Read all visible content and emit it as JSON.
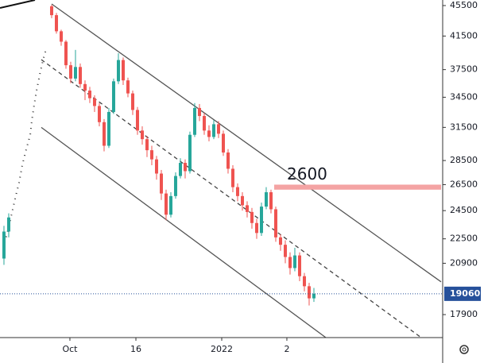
{
  "chart_data": {
    "type": "candlestick",
    "log_scale": true,
    "up_color": "#26a69a",
    "down_color": "#ef5350",
    "x": [
      -10,
      -9,
      0,
      1,
      2,
      3,
      4,
      5,
      6,
      7,
      8,
      9,
      10,
      11,
      12,
      13,
      14,
      15,
      16,
      17,
      18,
      19,
      20,
      21,
      22,
      23,
      24,
      25,
      26,
      27,
      28,
      29,
      30,
      31,
      32,
      33,
      34,
      35,
      36,
      37,
      38,
      39,
      40,
      41,
      42,
      43,
      44,
      45,
      46,
      47,
      48,
      49,
      50,
      51,
      52,
      53,
      54,
      55
    ],
    "open": [
      21200,
      23000,
      45400,
      44200,
      42100,
      40800,
      38000,
      36500,
      37800,
      35900,
      35200,
      34400,
      33600,
      32000,
      29800,
      33000,
      36200,
      38600,
      36300,
      34900,
      33200,
      31200,
      30400,
      29400,
      28600,
      27400,
      25800,
      24200,
      25600,
      27200,
      28300,
      27600,
      30800,
      33400,
      32600,
      31200,
      30600,
      31800,
      30900,
      29200,
      27800,
      26300,
      25600,
      24900,
      24400,
      23600,
      22900,
      24800,
      25900,
      24600,
      22600,
      22100,
      21300,
      20600,
      21400,
      20100,
      19500,
      18800
    ],
    "high": [
      23400,
      24300,
      45600,
      44500,
      42300,
      41000,
      38400,
      39800,
      38200,
      36300,
      35600,
      34700,
      33900,
      32300,
      33400,
      36500,
      39400,
      38900,
      36600,
      35200,
      33500,
      31600,
      30700,
      29800,
      28900,
      27700,
      26100,
      25900,
      27500,
      28700,
      28600,
      31100,
      33900,
      33800,
      32900,
      31700,
      32200,
      32100,
      31200,
      29500,
      28100,
      26600,
      25900,
      25200,
      24700,
      23900,
      25100,
      26300,
      26100,
      24800,
      22800,
      22400,
      21600,
      21900,
      21600,
      20300,
      19700,
      19400
    ],
    "low": [
      20800,
      22600,
      43800,
      41800,
      40300,
      37600,
      36000,
      36200,
      35500,
      34200,
      33900,
      33000,
      31600,
      29300,
      29600,
      32800,
      35900,
      35800,
      34500,
      32700,
      30800,
      29900,
      28800,
      28100,
      26900,
      25300,
      23800,
      24000,
      25400,
      27000,
      27000,
      27400,
      30600,
      32100,
      30800,
      30200,
      30400,
      30500,
      28900,
      27400,
      25900,
      25200,
      24500,
      24000,
      23200,
      22500,
      22700,
      24600,
      24300,
      22300,
      21700,
      20900,
      20200,
      20400,
      19800,
      19200,
      18400,
      18600
    ],
    "close": [
      23000,
      24000,
      44200,
      42100,
      40800,
      38000,
      36500,
      37800,
      35900,
      35200,
      34400,
      33600,
      32000,
      29800,
      33000,
      36200,
      38600,
      36300,
      34900,
      33200,
      31200,
      30400,
      29400,
      28600,
      27400,
      25800,
      24200,
      25600,
      27200,
      28300,
      27600,
      30800,
      33400,
      32600,
      31200,
      30600,
      31800,
      30900,
      29200,
      27800,
      26300,
      25600,
      24900,
      24400,
      23600,
      22900,
      24800,
      25900,
      24600,
      22600,
      22100,
      21300,
      20600,
      21400,
      20100,
      19500,
      18800,
      19060
    ],
    "xlim": [
      -10.83,
      81.67
    ],
    "xticks": [
      {
        "value": 3.83,
        "label": "Oct"
      },
      {
        "value": 17.67,
        "label": "16"
      },
      {
        "value": 35.67,
        "label": "2022"
      },
      {
        "value": 49.33,
        "label": "2"
      }
    ],
    "ylim": [
      16700,
      46270
    ],
    "yticks": [
      45500,
      41500,
      37500,
      34500,
      31500,
      28500,
      26500,
      24500,
      22500,
      20900,
      17900
    ],
    "trend_lines": [
      {
        "x": [
          0,
          81.67
        ],
        "y": [
          45720,
          19760
        ],
        "style": "solid",
        "color": "#555555"
      },
      {
        "x": [
          -2.17,
          57.5
        ],
        "y": [
          31500,
          16700
        ],
        "style": "solid",
        "color": "#555555"
      },
      {
        "x": [
          -2.17,
          77.5
        ],
        "y": [
          38650,
          16700
        ],
        "style": "dashed",
        "color": "#444444"
      }
    ],
    "zone": {
      "x": [
        46.67,
        81.67
      ],
      "y": [
        26100,
        26500
      ],
      "color": "#f4a3a3",
      "label": "2600"
    },
    "last_price": 19060,
    "last_price_color": "#26519b"
  }
}
